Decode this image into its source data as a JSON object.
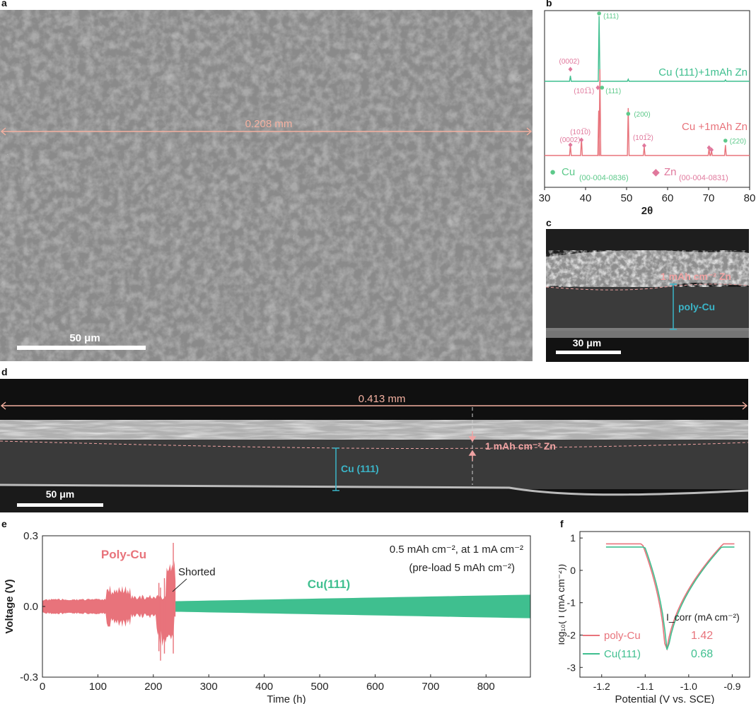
{
  "panels": {
    "a": "a",
    "b": "b",
    "c": "c",
    "d": "d",
    "e": "e",
    "f": "f"
  },
  "sem_a": {
    "measure_label": "0.208 mm",
    "scale_label": "50 μm"
  },
  "sem_c": {
    "zn_label": "1 mAh cm⁻² Zn",
    "cu_label": "poly-Cu",
    "scale_label": "30 μm"
  },
  "sem_d": {
    "measure_label": "0.413 mm",
    "zn_label": "1 mAh cm⁻² Zn",
    "cu_label": "Cu (111)",
    "scale_label": "50 μm"
  },
  "colors": {
    "pink": "#e8737b",
    "green": "#3fbf8f",
    "light_pink": "#f0a3a3",
    "zn_marker": "#e0789c",
    "cu_marker": "#5dc98a",
    "cyan": "#3bb5c8"
  },
  "chart_data": [
    {
      "id": "b",
      "type": "line",
      "xlabel": "2θ",
      "xlim": [
        30,
        80
      ],
      "xticks": [
        "30",
        "40",
        "50",
        "60",
        "70",
        "80"
      ],
      "series": [
        {
          "name": "Cu (111)+1mAh Zn",
          "peaks": [
            {
              "x": 36.3,
              "h": 0.08
            },
            {
              "x": 43.3,
              "h": 0.95
            },
            {
              "x": 50.4,
              "h": 0.03
            },
            {
              "x": 74.1,
              "h": 0.02
            }
          ]
        },
        {
          "name": "Cu +1mAh Zn",
          "peaks": [
            {
              "x": 36.3,
              "h": 0.12
            },
            {
              "x": 39.0,
              "h": 0.2
            },
            {
              "x": 43.2,
              "h": 0.52
            },
            {
              "x": 43.5,
              "h": 1.0
            },
            {
              "x": 50.4,
              "h": 0.55
            },
            {
              "x": 54.3,
              "h": 0.1
            },
            {
              "x": 70.1,
              "h": 0.08
            },
            {
              "x": 70.7,
              "h": 0.06
            },
            {
              "x": 74.1,
              "h": 0.12
            }
          ]
        }
      ],
      "annotations": {
        "top": [
          {
            "text": "(111)",
            "x": 43.3,
            "marker": "cu"
          },
          {
            "text": "(0002)",
            "x": 36.3,
            "marker": "zn"
          }
        ],
        "bottom": [
          {
            "text": "(101̅1)",
            "x": 43.0,
            "marker": "zn"
          },
          {
            "text": "(111)",
            "x": 43.5,
            "marker": "cu"
          },
          {
            "text": "(200)",
            "x": 50.4,
            "marker": "cu"
          },
          {
            "text": "(0002)",
            "x": 36.3,
            "marker": "zn"
          },
          {
            "text": "(101̅0)",
            "x": 39.0,
            "marker": "zn"
          },
          {
            "text": "(101̅2)",
            "x": 54.3,
            "marker": "zn"
          },
          {
            "text": "(220)",
            "x": 74.1,
            "marker": "cu"
          }
        ]
      },
      "legend": [
        {
          "symbol": "●",
          "name": "Cu",
          "ref": "(00-004-0836)"
        },
        {
          "symbol": "◆",
          "name": "Zn",
          "ref": "(00-004-0831)"
        }
      ]
    },
    {
      "id": "e",
      "type": "line",
      "xlabel": "Time (h)",
      "ylabel": "Voltage (V)",
      "xlim": [
        0,
        880
      ],
      "ylim": [
        -0.3,
        0.3
      ],
      "xticks": [
        "0",
        "100",
        "200",
        "300",
        "400",
        "500",
        "600",
        "700",
        "800"
      ],
      "yticks": [
        "-0.3",
        "0.0",
        "0.3"
      ],
      "series": [
        {
          "name": "Poly-Cu",
          "end_h": 240,
          "shorted_at_h": 240
        },
        {
          "name": "Cu(111)",
          "end_h": 880
        }
      ],
      "annotations": [
        "Shorted",
        "0.5 mAh cm⁻², at 1 mA cm⁻²",
        "(pre-load 5 mAh cm⁻²)"
      ]
    },
    {
      "id": "f",
      "type": "line",
      "xlabel": "Potential (V vs. SCE)",
      "ylabel": "log₁₀( I (mA cm⁻²))",
      "xlim": [
        -1.25,
        -0.86
      ],
      "ylim": [
        -3.3,
        1.2
      ],
      "xticks": [
        "-1.2",
        "-1.1",
        "-1.0",
        "-0.9"
      ],
      "yticks": [
        "1",
        "0",
        "-1",
        "-2",
        "-3"
      ],
      "legend_title": "I_corr (mA cm⁻²)",
      "series": [
        {
          "name": "poly-Cu",
          "icorr": "1.42"
        },
        {
          "name": "Cu(111)",
          "icorr": "0.68"
        }
      ]
    }
  ]
}
